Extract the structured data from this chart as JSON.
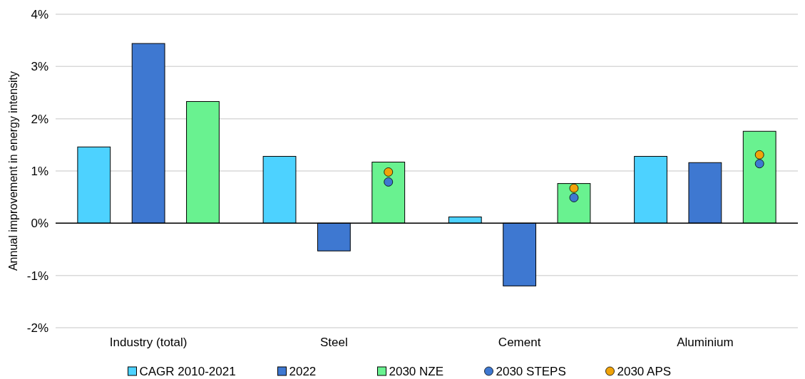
{
  "chart_data": {
    "type": "bar",
    "ylabel": "Annual improvement in energy intensity",
    "categories": [
      "Industry (total)",
      "Steel",
      "Cement",
      "Aluminium"
    ],
    "ylim": [
      -2,
      4
    ],
    "yticks": [
      {
        "value": -2,
        "label": "-2%"
      },
      {
        "value": -1,
        "label": "-1%"
      },
      {
        "value": 0,
        "label": "0%"
      },
      {
        "value": 1,
        "label": "1%"
      },
      {
        "value": 2,
        "label": "2%"
      },
      {
        "value": 3,
        "label": "3%"
      },
      {
        "value": 4,
        "label": "4%"
      }
    ],
    "grid": "y",
    "legend": "bottom",
    "marker": "circle",
    "series": [
      {
        "name": "CAGR 2010-2021",
        "color": "#4dd2ff",
        "values": [
          1.46,
          1.28,
          0.12,
          1.28
        ]
      },
      {
        "name": "2022",
        "color": "#3e78d1",
        "values": [
          3.44,
          -0.53,
          -1.2,
          1.16
        ]
      },
      {
        "name": "2030 NZE",
        "color": "#69f290",
        "values": [
          2.33,
          1.17,
          0.76,
          1.76
        ]
      },
      {
        "name": "2030 STEPS",
        "type": "scatter",
        "color": "#3e78d1",
        "x": [
          "Industry (total)",
          "Steel",
          "Cement",
          "Aluminium"
        ],
        "values": [
          null,
          0.79,
          0.49,
          1.14
        ]
      },
      {
        "name": "2030 APS",
        "type": "scatter",
        "color": "#f0a30a",
        "x": [
          "Industry (total)",
          "Steel",
          "Cement",
          "Aluminium"
        ],
        "values": [
          null,
          0.98,
          0.67,
          1.31
        ]
      }
    ]
  }
}
